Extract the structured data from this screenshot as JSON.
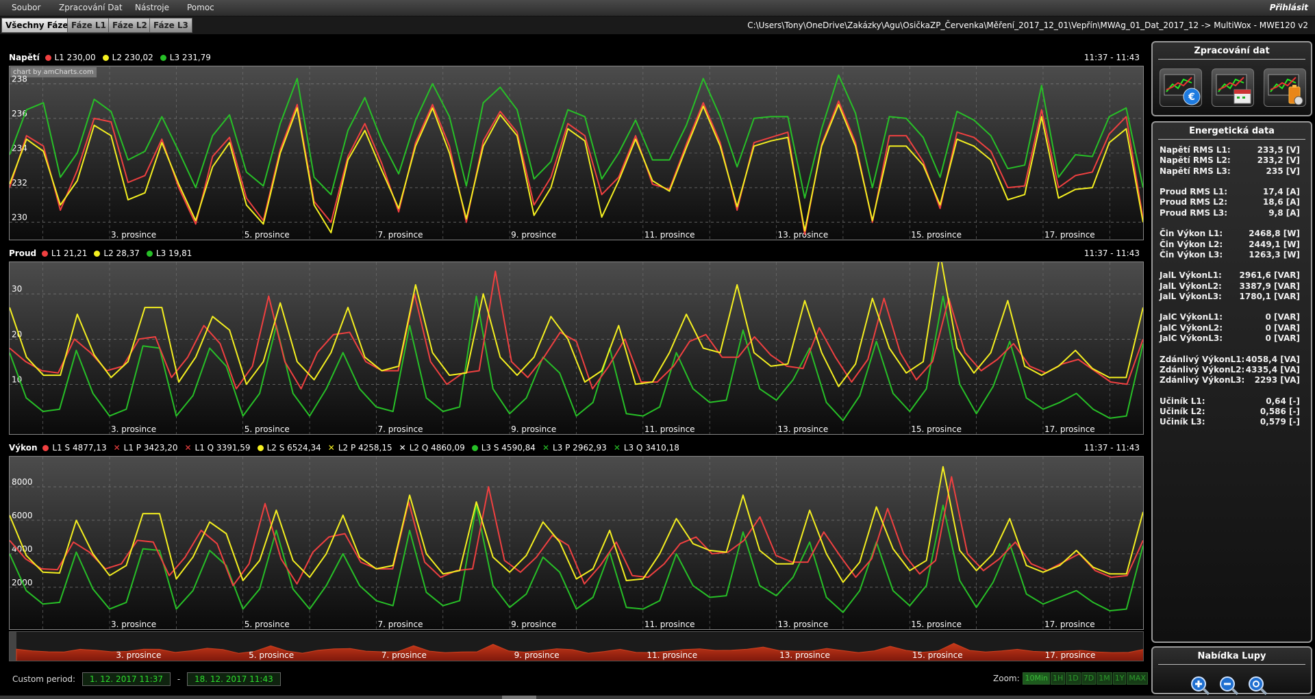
{
  "menu": {
    "items": [
      "Soubor",
      "Zpracování Dat",
      "Nástroje",
      "Pomoc"
    ],
    "login": "Přihlásit"
  },
  "tabs": [
    {
      "label": "Všechny Fáze",
      "active": true
    },
    {
      "label": "Fáze L1",
      "active": false
    },
    {
      "label": "Fáze L2",
      "active": false
    },
    {
      "label": "Fáze L3",
      "active": false
    }
  ],
  "file_path": "C:\\Users\\Tony\\OneDrive\\Zakázky\\Agu\\OsičkaZP_Červenka\\Měření_2017_12_01\\Vepřín\\MWAg_01_Dat_2017_12 -> MultiWox - MWE120 v2",
  "colors": {
    "L1": "#f04040",
    "L2": "#f5f020",
    "L3": "#27c027",
    "scroll_fill": "#a8230f"
  },
  "chart_credit": "chart by amCharts.com",
  "charts_common": {
    "time_range": "11:37 - 11:43",
    "x_labels": [
      "3. prosince",
      "5. prosince",
      "7. prosince",
      "9. prosince",
      "11. prosince",
      "13. prosince",
      "15. prosince",
      "17. prosince"
    ]
  },
  "chart_data": [
    {
      "type": "line",
      "title": "Napětí",
      "legend": [
        {
          "marker": "dot",
          "color": "#f04040",
          "text": "L1 230,00"
        },
        {
          "marker": "dot",
          "color": "#f5f020",
          "text": "L2 230,02"
        },
        {
          "marker": "dot",
          "color": "#27c027",
          "text": "L3 231,79"
        }
      ],
      "yticks": [
        230,
        232,
        234,
        236,
        238
      ],
      "ylim": [
        229,
        239
      ],
      "x_range": [
        1.5,
        18.5
      ],
      "series": [
        {
          "name": "L1",
          "values": [
            232.0,
            235.0,
            234.4,
            230.7,
            233.0,
            236.0,
            235.8,
            232.3,
            232.7,
            234.8,
            232.0,
            229.9,
            233.8,
            234.9,
            231.4,
            230.1,
            234.2,
            236.8,
            231.2,
            230.0,
            233.8,
            235.7,
            233.4,
            230.6,
            234.6,
            236.8,
            234.4,
            230.0,
            234.7,
            236.4,
            235.2,
            231.0,
            232.6,
            235.7,
            235.0,
            231.6,
            232.6,
            235.0,
            232.2,
            231.9,
            234.5,
            236.9,
            234.6,
            230.7,
            234.6,
            234.9,
            235.2,
            229.3,
            234.5,
            237.0,
            234.6,
            230.0,
            235.0,
            235.0,
            233.5,
            230.8,
            235.2,
            234.9,
            234.1,
            232.0,
            232.1,
            236.5,
            232.0,
            232.7,
            232.9,
            235.1,
            236.1,
            230.2
          ]
        },
        {
          "name": "L2",
          "values": [
            232.2,
            234.8,
            234.1,
            231.0,
            232.4,
            235.6,
            235.0,
            231.3,
            231.7,
            234.6,
            232.2,
            230.1,
            233.2,
            234.6,
            231.0,
            229.9,
            234.0,
            236.6,
            231.0,
            229.4,
            233.6,
            235.3,
            233.0,
            230.8,
            234.4,
            236.6,
            234.0,
            230.2,
            234.4,
            236.2,
            235.0,
            230.4,
            232.0,
            235.4,
            234.7,
            230.3,
            232.4,
            234.8,
            232.4,
            231.8,
            234.3,
            236.7,
            234.4,
            230.9,
            234.4,
            234.7,
            234.9,
            229.5,
            234.4,
            236.8,
            234.4,
            230.1,
            234.4,
            234.4,
            233.3,
            231.0,
            234.8,
            234.4,
            233.6,
            231.3,
            231.6,
            236.1,
            231.4,
            231.9,
            232.0,
            234.6,
            235.4,
            230.0
          ]
        },
        {
          "name": "L3",
          "values": [
            233.9,
            236.5,
            236.9,
            232.6,
            234.0,
            237.1,
            236.4,
            233.6,
            234.1,
            236.1,
            234.1,
            232.0,
            235.0,
            236.2,
            232.9,
            232.1,
            235.7,
            238.3,
            232.6,
            231.6,
            235.3,
            237.2,
            234.7,
            232.8,
            235.9,
            238.0,
            236.1,
            232.1,
            236.9,
            237.8,
            236.5,
            232.5,
            233.5,
            236.5,
            236.1,
            232.5,
            234.0,
            235.9,
            233.6,
            233.6,
            235.6,
            238.3,
            236.1,
            233.2,
            236.0,
            236.1,
            236.1,
            231.4,
            235.4,
            238.5,
            236.3,
            232.0,
            236.1,
            236.0,
            234.9,
            232.6,
            236.4,
            235.9,
            235.0,
            233.1,
            233.3,
            237.9,
            232.6,
            233.9,
            233.8,
            236.1,
            236.6,
            232.0
          ]
        }
      ]
    },
    {
      "type": "line",
      "title": "Proud",
      "legend": [
        {
          "marker": "dot",
          "color": "#f04040",
          "text": "L1 21,21"
        },
        {
          "marker": "dot",
          "color": "#f5f020",
          "text": "L2 28,37"
        },
        {
          "marker": "dot",
          "color": "#27c027",
          "text": "L3 19,81"
        }
      ],
      "yticks": [
        10,
        20,
        30
      ],
      "ylim": [
        -1,
        37
      ],
      "x_range": [
        1.5,
        18.5
      ],
      "series": [
        {
          "name": "L1",
          "values": [
            18,
            15,
            13,
            12.5,
            20,
            17,
            13,
            14,
            20,
            20.5,
            11.5,
            16,
            23,
            19,
            9,
            14,
            29.5,
            15,
            9,
            17,
            21,
            21.5,
            15,
            13,
            13,
            30,
            15,
            10,
            12.5,
            13,
            35,
            15,
            11.5,
            16,
            21.5,
            19.5,
            9,
            14,
            20,
            10.5,
            10.5,
            14,
            19.5,
            21,
            16,
            16,
            20.5,
            16.5,
            14,
            13.5,
            22.5,
            16,
            10.5,
            15.5,
            29,
            17,
            11,
            15,
            29,
            17,
            13,
            15.5,
            19,
            14,
            12.5,
            14.5,
            15.5,
            13,
            10.5,
            10,
            20
          ]
        },
        {
          "name": "L2",
          "values": [
            27,
            16,
            12,
            12,
            25.5,
            16.5,
            11.5,
            15,
            27,
            27,
            10.5,
            16,
            25,
            22,
            10,
            15,
            28,
            15,
            11,
            17,
            27,
            16,
            13,
            14,
            32,
            17,
            12,
            12.5,
            30,
            16,
            12,
            16,
            25,
            20,
            10.5,
            13,
            23,
            10,
            10.5,
            17,
            25.5,
            18,
            17,
            32,
            17,
            14,
            14.5,
            28.5,
            17,
            9.5,
            14.5,
            29,
            18,
            12.5,
            15,
            39,
            18,
            12.5,
            17,
            28.5,
            14,
            12,
            14,
            17.5,
            13.5,
            11.5,
            11.5,
            27
          ]
        },
        {
          "name": "L3",
          "values": [
            17,
            7,
            4,
            4.5,
            17.5,
            8,
            3,
            4.5,
            18.5,
            18,
            3,
            7.5,
            18,
            14,
            3,
            8,
            23,
            8,
            3,
            9,
            17,
            9,
            5,
            4,
            23,
            7,
            4,
            5,
            29.5,
            9,
            3.5,
            7,
            16,
            12.5,
            3,
            6,
            18,
            3.5,
            3,
            5,
            17,
            9,
            6,
            6.5,
            22,
            9,
            6.5,
            11,
            18,
            6,
            2,
            7.5,
            19.5,
            8,
            4,
            9,
            29.5,
            10,
            3.5,
            9.5,
            19.5,
            7,
            4.5,
            6,
            8,
            4.5,
            2.5,
            3,
            19
          ]
        }
      ]
    },
    {
      "type": "line",
      "title": "Výkon",
      "legend": [
        {
          "marker": "dot",
          "color": "#f04040",
          "text": "L1 S 4877,13"
        },
        {
          "marker": "x",
          "color": "#f04040",
          "text": "L1 P 3423,20"
        },
        {
          "marker": "x",
          "color": "#f04040",
          "text": "L1 Q 3391,59"
        },
        {
          "marker": "dot",
          "color": "#f5f020",
          "text": "L2 S 6524,34"
        },
        {
          "marker": "x",
          "color": "#f5f020",
          "text": "L2 P 4258,15"
        },
        {
          "marker": "x",
          "color": "#ffffff",
          "text": "L2 Q 4860,09"
        },
        {
          "marker": "dot",
          "color": "#27c027",
          "text": "L3 S 4590,84"
        },
        {
          "marker": "x",
          "color": "#27c027",
          "text": "L3 P 2962,93"
        },
        {
          "marker": "x",
          "color": "#27c027",
          "text": "L3 Q 3410,18"
        }
      ],
      "yticks": [
        2000,
        4000,
        6000,
        8000
      ],
      "ylim": [
        -500,
        9800
      ],
      "x_range": [
        1.5,
        18.5
      ],
      "series": [
        {
          "name": "L1",
          "values": [
            4800,
            3700,
            3100,
            3050,
            4700,
            4100,
            3100,
            3400,
            4800,
            4700,
            2700,
            3800,
            5400,
            4600,
            2100,
            3400,
            7000,
            3700,
            2200,
            4100,
            5000,
            5200,
            3500,
            3100,
            3100,
            7100,
            3500,
            2600,
            3000,
            3100,
            8000,
            3600,
            2900,
            3800,
            5100,
            4500,
            2200,
            3300,
            4700,
            2700,
            2600,
            3400,
            4600,
            5000,
            4000,
            4100,
            4800,
            6200,
            3900,
            3500,
            3500,
            5300,
            3900,
            2600,
            3700,
            6700,
            4000,
            2800,
            3600,
            8600,
            4000,
            3000,
            3700,
            4700,
            3400,
            3000,
            3500,
            4000,
            3000,
            2600,
            2700,
            4800
          ]
        },
        {
          "name": "L2",
          "values": [
            6300,
            3900,
            2900,
            2850,
            6000,
            4000,
            2700,
            3300,
            6400,
            6400,
            2500,
            3800,
            5900,
            5200,
            2400,
            3600,
            6600,
            3600,
            2600,
            4000,
            6300,
            3800,
            3100,
            3300,
            7500,
            4000,
            2800,
            3000,
            7100,
            3800,
            2900,
            3900,
            5900,
            4700,
            2500,
            3100,
            5400,
            2400,
            2500,
            4000,
            6100,
            4600,
            4200,
            4100,
            7500,
            4200,
            3400,
            3400,
            6600,
            4000,
            2300,
            3500,
            6800,
            4300,
            3000,
            3600,
            9200,
            4200,
            3000,
            4000,
            6100,
            3300,
            2900,
            3300,
            4200,
            3200,
            2800,
            2800,
            6500
          ]
        },
        {
          "name": "L3",
          "values": [
            4000,
            1800,
            1000,
            1100,
            4100,
            1900,
            700,
            1100,
            4300,
            4200,
            700,
            1800,
            4200,
            3300,
            700,
            1900,
            5400,
            1900,
            700,
            2100,
            4000,
            2100,
            1200,
            900,
            5400,
            1700,
            900,
            1200,
            6900,
            2100,
            800,
            1600,
            3800,
            2900,
            700,
            1400,
            4100,
            800,
            700,
            1200,
            4000,
            2100,
            1400,
            1500,
            5300,
            2100,
            1500,
            2600,
            4700,
            1400,
            500,
            1800,
            4700,
            1800,
            900,
            2100,
            6900,
            2400,
            800,
            2300,
            4600,
            1600,
            1000,
            1400,
            1800,
            1100,
            600,
            700,
            4500
          ]
        }
      ]
    }
  ],
  "scroller": {
    "x_labels": [
      "3. prosince",
      "5. prosince",
      "7. prosince",
      "9. prosince",
      "11. prosince",
      "13. prosince",
      "15. prosince",
      "17. prosince"
    ]
  },
  "period": {
    "label": "Custom period:",
    "from": "1. 12. 2017 11:37",
    "sep": "-",
    "to": "18. 12. 2017 11:43"
  },
  "zoom": {
    "label": "Zoom:",
    "options": [
      "10Min",
      "1H",
      "1D",
      "7D",
      "1M",
      "1Y",
      "MAX"
    ]
  },
  "processing_panel": {
    "title": "Zpracování dat",
    "buttons": [
      "euro-chart-icon",
      "calendar-chart-icon",
      "battery-chart-icon"
    ]
  },
  "energy_panel": {
    "title": "Energetická data",
    "groups": [
      [
        {
          "label": "Napětí RMS L1:",
          "value": "233,5 [V]"
        },
        {
          "label": "Napětí RMS L2:",
          "value": "233,2 [V]"
        },
        {
          "label": "Napětí RMS L3:",
          "value": "235 [V]"
        }
      ],
      [
        {
          "label": "Proud RMS L1:",
          "value": "17,4 [A]"
        },
        {
          "label": "Proud RMS L2:",
          "value": "18,6 [A]"
        },
        {
          "label": "Proud RMS L3:",
          "value": "9,8 [A]"
        }
      ],
      [
        {
          "label": "Čin Výkon L1:",
          "value": "2468,8 [W]"
        },
        {
          "label": "Čin Výkon L2:",
          "value": "2449,1 [W]"
        },
        {
          "label": "Čin Výkon L3:",
          "value": "1263,3 [W]"
        }
      ],
      [
        {
          "label": "JalL VýkonL1:",
          "value": "2961,6 [VAR]"
        },
        {
          "label": "JalL VýkonL2:",
          "value": "3387,9 [VAR]"
        },
        {
          "label": "JalL VýkonL3:",
          "value": "1780,1 [VAR]"
        }
      ],
      [
        {
          "label": "JalC VýkonL1:",
          "value": "0 [VAR]"
        },
        {
          "label": "JalC VýkonL2:",
          "value": "0 [VAR]"
        },
        {
          "label": "JalC VýkonL3:",
          "value": "0 [VAR]"
        }
      ],
      [
        {
          "label": "Zdánlivý VýkonL1:",
          "value": "4058,4 [VA]"
        },
        {
          "label": "Zdánlivý VýkonL2:",
          "value": "4335,4 [VA]"
        },
        {
          "label": "Zdánlivý VýkonL3:",
          "value": "2293 [VA]"
        }
      ],
      [
        {
          "label": "Učiník L1:",
          "value": "0,64 [-]"
        },
        {
          "label": "Učiník L2:",
          "value": "0,586 [-]"
        },
        {
          "label": "Učiník L3:",
          "value": "0,579 [-]"
        }
      ]
    ]
  },
  "zoom_panel": {
    "title": "Nabídka Lupy",
    "buttons": [
      "zoom-in-icon",
      "zoom-out-icon",
      "zoom-reset-icon"
    ]
  }
}
